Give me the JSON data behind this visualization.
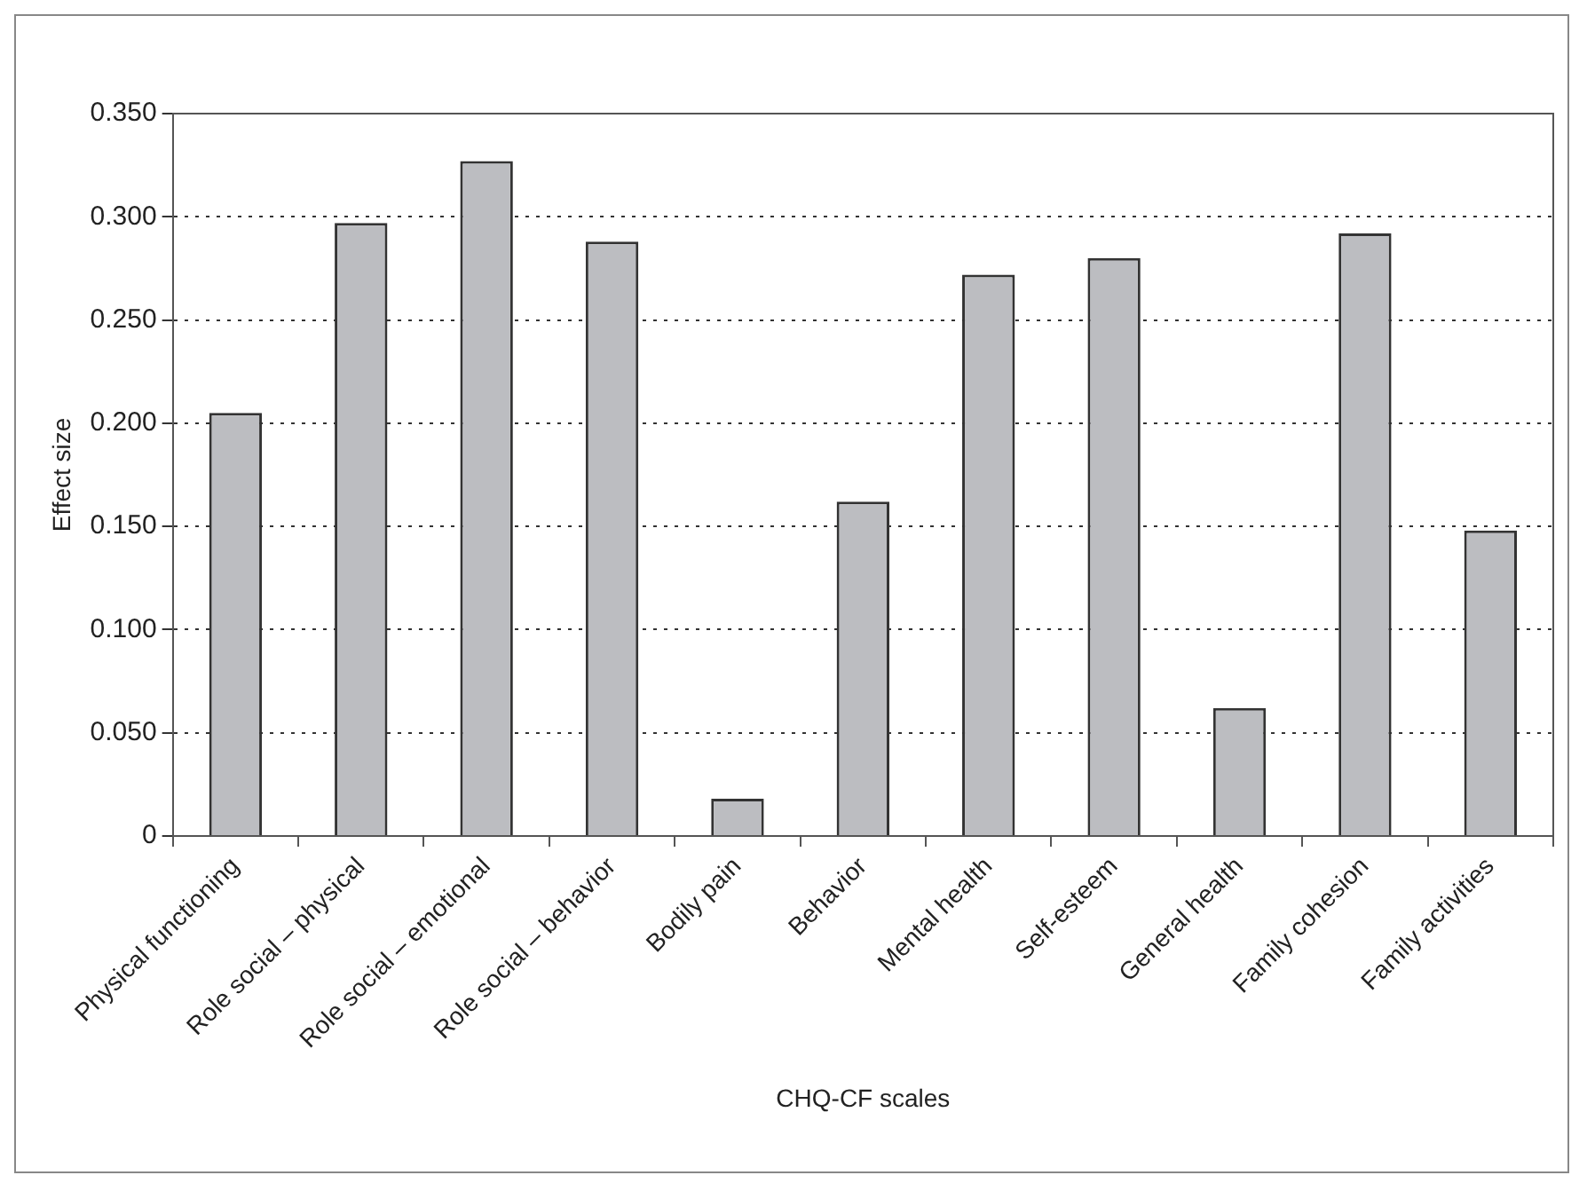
{
  "chart_data": {
    "type": "bar",
    "xlabel": "CHQ-CF scales",
    "ylabel": "Effect size",
    "categories": [
      "Physical functioning",
      "Role social – physical",
      "Role social – emotional",
      "Role social – behavior",
      "Bodily pain",
      "Behavior",
      "Mental health",
      "Self-esteem",
      "General health",
      "Family cohesion",
      "Family activities"
    ],
    "values": [
      0.205,
      0.297,
      0.327,
      0.288,
      0.018,
      0.162,
      0.272,
      0.28,
      0.062,
      0.292,
      0.148
    ],
    "color": "#bcbdc1",
    "ylim": [
      0,
      0.35
    ],
    "yticks": [
      {
        "value": 0,
        "label": "0"
      },
      {
        "value": 0.05,
        "label": "0.050"
      },
      {
        "value": 0.1,
        "label": "0.100"
      },
      {
        "value": 0.15,
        "label": "0.150"
      },
      {
        "value": 0.2,
        "label": "0.200"
      },
      {
        "value": 0.25,
        "label": "0.250"
      },
      {
        "value": 0.3,
        "label": "0.300"
      },
      {
        "value": 0.35,
        "label": "0.350"
      }
    ],
    "grid": "y",
    "legend": false
  }
}
